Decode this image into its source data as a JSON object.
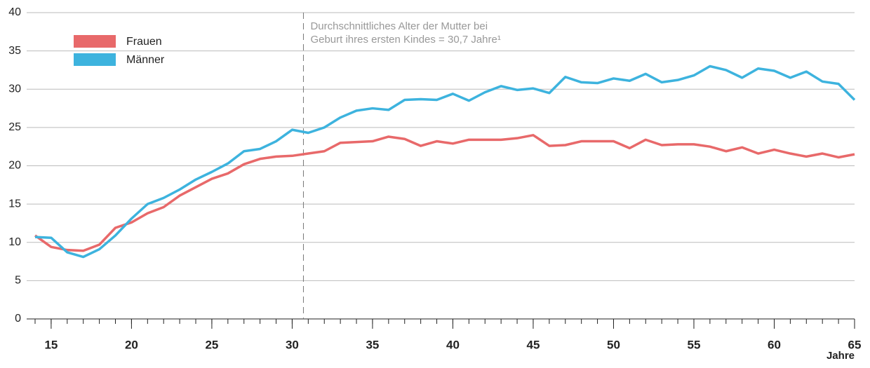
{
  "chart_data": {
    "type": "line",
    "x": [
      14,
      15,
      16,
      17,
      18,
      19,
      20,
      21,
      22,
      23,
      24,
      25,
      26,
      27,
      28,
      29,
      30,
      31,
      32,
      33,
      34,
      35,
      36,
      37,
      38,
      39,
      40,
      41,
      42,
      43,
      44,
      45,
      46,
      47,
      48,
      49,
      50,
      51,
      52,
      53,
      54,
      55,
      56,
      57,
      58,
      59,
      60,
      61,
      62,
      63,
      64,
      65
    ],
    "series": [
      {
        "name": "Frauen",
        "color": "#e8696a",
        "values": [
          10.9,
          9.4,
          9.0,
          8.9,
          9.7,
          11.9,
          12.6,
          13.8,
          14.6,
          16.1,
          17.2,
          18.3,
          19.0,
          20.2,
          20.9,
          21.2,
          21.3,
          21.6,
          21.9,
          23.0,
          23.1,
          23.2,
          23.8,
          23.5,
          22.6,
          23.2,
          22.9,
          23.4,
          23.4,
          23.4,
          23.6,
          24.0,
          22.6,
          22.7,
          23.2,
          23.2,
          23.2,
          22.3,
          23.4,
          22.7,
          22.8,
          22.8,
          22.5,
          21.9,
          22.4,
          21.6,
          22.1,
          21.6,
          21.2,
          21.6,
          21.1,
          21.5
        ]
      },
      {
        "name": "Männer",
        "color": "#3db3de",
        "values": [
          10.7,
          10.6,
          8.7,
          8.1,
          9.1,
          10.9,
          13.1,
          15.0,
          15.8,
          16.9,
          18.2,
          19.2,
          20.3,
          21.9,
          22.2,
          23.2,
          24.7,
          24.3,
          25.0,
          26.3,
          27.2,
          27.5,
          27.3,
          28.6,
          28.7,
          28.6,
          29.4,
          28.5,
          29.6,
          30.4,
          29.9,
          30.1,
          29.5,
          31.6,
          30.9,
          30.8,
          31.4,
          31.1,
          32.0,
          30.9,
          31.2,
          31.8,
          33.0,
          32.5,
          31.5,
          32.7,
          32.4,
          31.5,
          32.3,
          31.0,
          30.7,
          28.6
        ]
      }
    ],
    "x_label": "Jahre",
    "xlim": [
      14,
      65
    ],
    "xticks": [
      15,
      20,
      25,
      30,
      35,
      40,
      45,
      50,
      55,
      60,
      65
    ],
    "ylim": [
      0,
      40
    ],
    "yticks": [
      0,
      5,
      10,
      15,
      20,
      25,
      30,
      35,
      40
    ],
    "grid": true,
    "annotation": {
      "x": 30.7,
      "text": [
        "Durchschnittliches Alter der Mutter bei",
        "Geburt ihres ersten Kindes = 30,7 Jahre¹"
      ]
    }
  }
}
